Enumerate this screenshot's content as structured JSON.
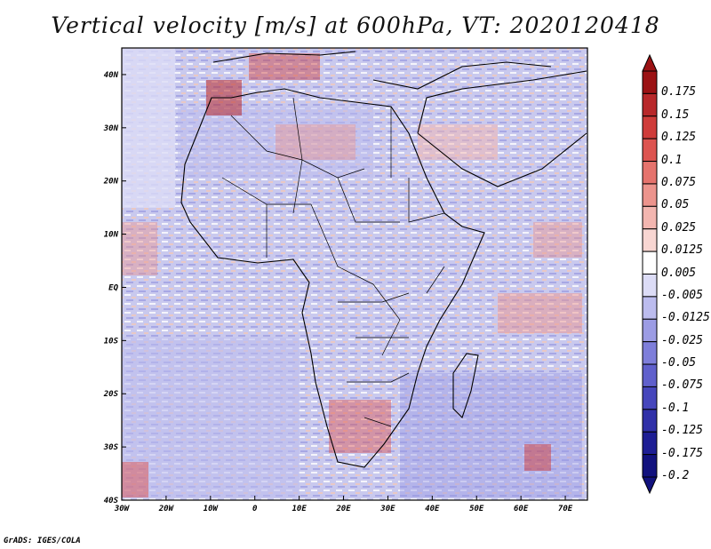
{
  "title": "Vertical velocity [m/s] at 600hPa, VT: 2020120418",
  "footer": "GrADS: IGES/COLA",
  "map": {
    "lat_labels": [
      "40N",
      "30N",
      "20N",
      "10N",
      "EQ",
      "10S",
      "20S",
      "30S",
      "40S"
    ],
    "lon_labels": [
      "30W",
      "20W",
      "10W",
      "0",
      "10E",
      "20E",
      "30E",
      "40E",
      "50E",
      "60E",
      "70E"
    ],
    "extent": {
      "lon_min": -30,
      "lon_max": 75,
      "lat_min": -40,
      "lat_max": 45
    }
  },
  "colorbar": {
    "labels": [
      "0.175",
      "0.15",
      "0.125",
      "0.1",
      "0.075",
      "0.05",
      "0.025",
      "0.0125",
      "0.005",
      "-0.005",
      "-0.0125",
      "-0.025",
      "-0.05",
      "-0.075",
      "-0.1",
      "-0.125",
      "-0.175",
      "-0.2"
    ],
    "colors": [
      "#9b1214",
      "#b8282a",
      "#cf3c3a",
      "#dd5450",
      "#e5736d",
      "#ec948d",
      "#f3b6b0",
      "#f8d6d2",
      "#ffffff",
      "#dcdcf6",
      "#bcbcee",
      "#9c9ce4",
      "#7e7eda",
      "#6060cc",
      "#4646bc",
      "#3030a8",
      "#1e1e94",
      "#12127e"
    ]
  }
}
